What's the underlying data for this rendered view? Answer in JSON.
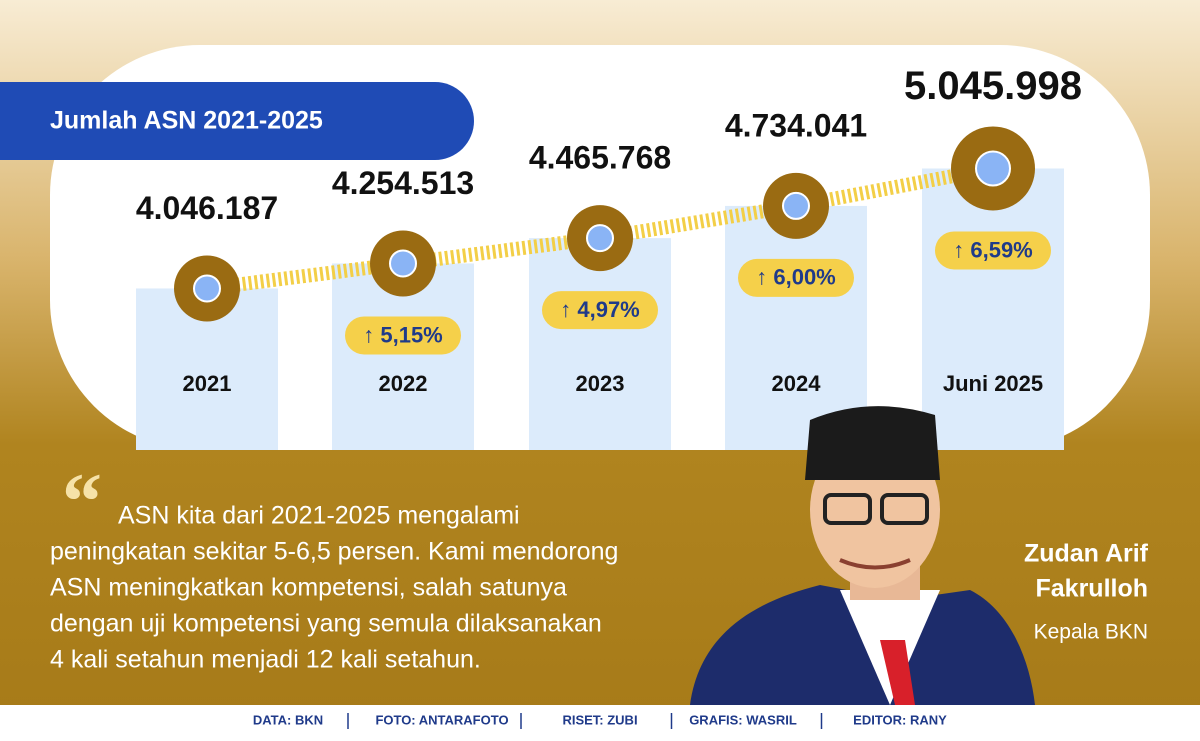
{
  "chart_data": {
    "type": "bar",
    "title": "Jumlah ASN 2021-2025",
    "categories": [
      "2021",
      "2022",
      "2023",
      "2024",
      "Juni 2025"
    ],
    "values": [
      4046187,
      4254513,
      4465768,
      4734041,
      5045998
    ],
    "value_labels": [
      "4.046.187",
      "4.254.513",
      "4.465.768",
      "4.734.041",
      "5.045.998"
    ],
    "growth_labels": [
      null,
      "↑ 5,15%",
      "↑ 4,97%",
      "↑ 6,00%",
      "↑ 6,59%"
    ],
    "color": "#dcebfb",
    "ylim": [
      2700000,
      5600000
    ]
  },
  "quote": {
    "lines": [
      "ASN kita dari 2021-2025 mengalami",
      "peningkatan sekitar 5-6,5 persen. Kami mendorong",
      "ASN meningkatkan kompetensi, salah satunya",
      "dengan uji kompetensi yang semula dilaksanakan",
      "4 kali setahun menjadi 12 kali setahun."
    ],
    "name_lines": [
      "Zudan Arif",
      "Fakrulloh"
    ],
    "role": "Kepala BKN"
  },
  "footer": [
    "DATA: BKN",
    "FOTO: ANTARAFOTO",
    "RISET: ZUBI",
    "GRAFIS: WASRIL",
    "EDITOR: RANY"
  ]
}
